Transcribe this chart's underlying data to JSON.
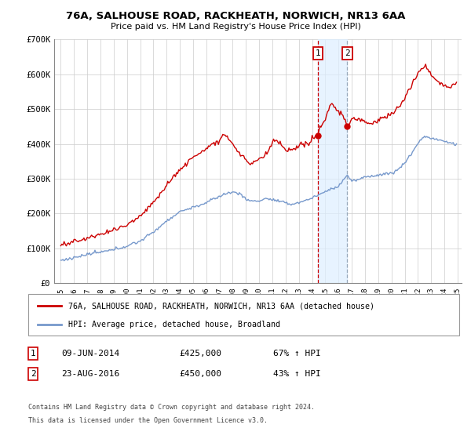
{
  "title": "76A, SALHOUSE ROAD, RACKHEATH, NORWICH, NR13 6AA",
  "subtitle": "Price paid vs. HM Land Registry's House Price Index (HPI)",
  "legend_line1": "76A, SALHOUSE ROAD, RACKHEATH, NORWICH, NR13 6AA (detached house)",
  "legend_line2": "HPI: Average price, detached house, Broadland",
  "transaction1_date": "09-JUN-2014",
  "transaction1_price": "£425,000",
  "transaction1_hpi": "67% ↑ HPI",
  "transaction2_date": "23-AUG-2016",
  "transaction2_price": "£450,000",
  "transaction2_hpi": "43% ↑ HPI",
  "footer1": "Contains HM Land Registry data © Crown copyright and database right 2024.",
  "footer2": "This data is licensed under the Open Government Licence v3.0.",
  "line1_color": "#cc0000",
  "line2_color": "#7799cc",
  "marker_color": "#cc0000",
  "vline1_color": "#cc0000",
  "vline2_color": "#99aabb",
  "shade_color": "#ddeeff",
  "ylim": [
    0,
    700000
  ],
  "yticks": [
    0,
    100000,
    200000,
    300000,
    400000,
    500000,
    600000,
    700000
  ],
  "ytick_labels": [
    "£0",
    "£100K",
    "£200K",
    "£300K",
    "£400K",
    "£500K",
    "£600K",
    "£700K"
  ],
  "transaction1_x": 2014.44,
  "transaction1_y": 425000,
  "transaction2_x": 2016.64,
  "transaction2_y": 450000,
  "xlim_left": 1994.5,
  "xlim_right": 2025.3
}
